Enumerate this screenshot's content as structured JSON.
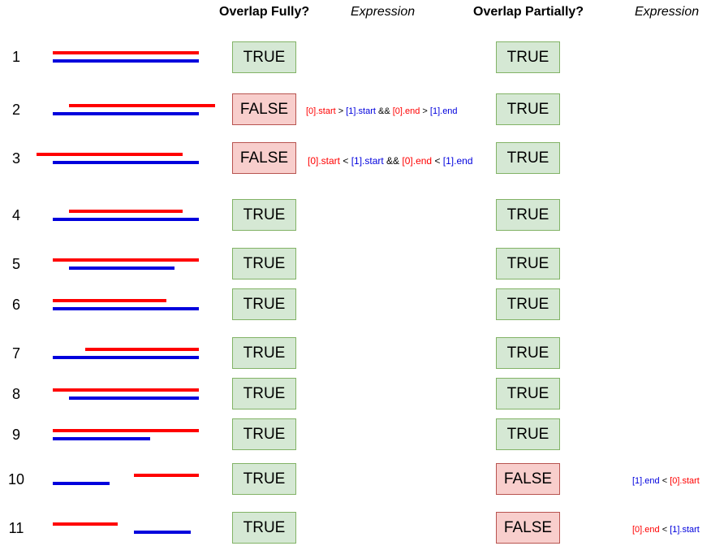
{
  "headers": {
    "overlap_fully": "Overlap Fully?",
    "expression_1": "Expression",
    "overlap_partially": "Overlap Partially?",
    "expression_2": "Expression"
  },
  "colors": {
    "red_line": "#ff0000",
    "blue_line": "#0000dd",
    "true_fill": "#d5e8d4",
    "false_fill": "#f8cecc"
  },
  "rows": [
    {
      "num": "1",
      "full": "TRUE",
      "partial": "TRUE"
    },
    {
      "num": "2",
      "full": "FALSE",
      "partial": "TRUE",
      "full_expr": {
        "a": "[0].start",
        "op1": " > ",
        "b": "[1].start",
        "join": " && ",
        "c": "[0].end",
        "op2": " > ",
        "d": "[1].end"
      }
    },
    {
      "num": "3",
      "full": "FALSE",
      "partial": "TRUE",
      "full_expr": {
        "a": "[0].start",
        "op1": " < ",
        "b": "[1].start",
        "join": " && ",
        "c": "[0].end",
        "op2": " < ",
        "d": "[1].end"
      }
    },
    {
      "num": "4",
      "full": "TRUE",
      "partial": "TRUE"
    },
    {
      "num": "5",
      "full": "TRUE",
      "partial": "TRUE"
    },
    {
      "num": "6",
      "full": "TRUE",
      "partial": "TRUE"
    },
    {
      "num": "7",
      "full": "TRUE",
      "partial": "TRUE"
    },
    {
      "num": "8",
      "full": "TRUE",
      "partial": "TRUE"
    },
    {
      "num": "9",
      "full": "TRUE",
      "partial": "TRUE"
    },
    {
      "num": "10",
      "full": "TRUE",
      "partial": "FALSE",
      "partial_expr": {
        "a": "[1].end",
        "op": " < ",
        "b": "[0].start"
      }
    },
    {
      "num": "11",
      "full": "TRUE",
      "partial": "FALSE",
      "partial_expr": {
        "a": "[0].end",
        "op": " < ",
        "b": "[1].start"
      }
    }
  ]
}
